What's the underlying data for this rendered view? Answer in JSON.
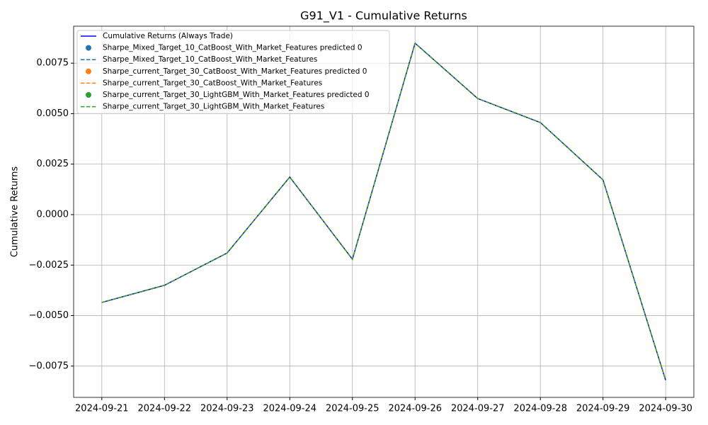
{
  "chart_data": {
    "type": "line",
    "title": "G91_V1 - Cumulative Returns",
    "y_label": "Cumulative Returns",
    "categories": [
      "2024-09-21",
      "2024-09-22",
      "2024-09-23",
      "2024-09-24",
      "2024-09-25",
      "2024-09-26",
      "2024-09-27",
      "2024-09-28",
      "2024-09-29",
      "2024-09-30"
    ],
    "series": [
      {
        "name": "Cumulative Returns (Always Trade)",
        "color": "#0000ff",
        "style": "solid",
        "values": [
          -0.00435,
          -0.0035,
          -0.0019,
          0.00186,
          -0.00221,
          0.00849,
          0.00575,
          0.00456,
          0.00172,
          -0.0082
        ]
      },
      {
        "name": "Sharpe_Mixed_Target_10_CatBoost_With_Market_Features predicted 0",
        "color": "#1f77b4",
        "style": "marker",
        "values": [
          null,
          null,
          null,
          null,
          null,
          null,
          null,
          null,
          null,
          null
        ]
      },
      {
        "name": "Sharpe_Mixed_Target_10_CatBoost_With_Market_Features",
        "color": "#1f77b4",
        "style": "dashed",
        "values": [
          -0.00435,
          -0.0035,
          -0.0019,
          0.00186,
          -0.00221,
          0.00849,
          0.00575,
          0.00456,
          0.00172,
          -0.0082
        ]
      },
      {
        "name": "Sharpe_current_Target_30_CatBoost_With_Market_Features predicted 0",
        "color": "#ff7f0e",
        "style": "marker",
        "values": [
          null,
          null,
          null,
          null,
          null,
          null,
          null,
          null,
          null,
          null
        ]
      },
      {
        "name": "Sharpe_current_Target_30_CatBoost_With_Market_Features",
        "color": "#ff7f0e",
        "style": "dashed",
        "values": [
          -0.00435,
          -0.0035,
          -0.0019,
          0.00186,
          -0.00221,
          0.00849,
          0.00575,
          0.00456,
          0.00172,
          -0.0082
        ]
      },
      {
        "name": "Sharpe_current_Target_30_LightGBM_With_Market_Features predicted 0",
        "color": "#2ca02c",
        "style": "marker",
        "values": [
          null,
          null,
          null,
          null,
          null,
          null,
          null,
          null,
          null,
          null
        ]
      },
      {
        "name": "Sharpe_current_Target_30_LightGBM_With_Market_Features",
        "color": "#2ca02c",
        "style": "dashed",
        "values": [
          -0.00435,
          -0.0035,
          -0.0019,
          0.00186,
          -0.00221,
          0.00849,
          0.00575,
          0.00456,
          0.00172,
          -0.0082
        ]
      }
    ],
    "ylim": [
      -0.00905,
      0.00933
    ],
    "yticks": [
      {
        "value": -0.0075,
        "label": "−0.0075"
      },
      {
        "value": -0.005,
        "label": "−0.0050"
      },
      {
        "value": -0.0025,
        "label": "−0.0025"
      },
      {
        "value": 0,
        "label": "0.0000"
      },
      0.0025,
      {
        "value": 0.005,
        "label": "0.0050"
      },
      0.0075
    ],
    "grid": true,
    "legend": "upper-left"
  }
}
